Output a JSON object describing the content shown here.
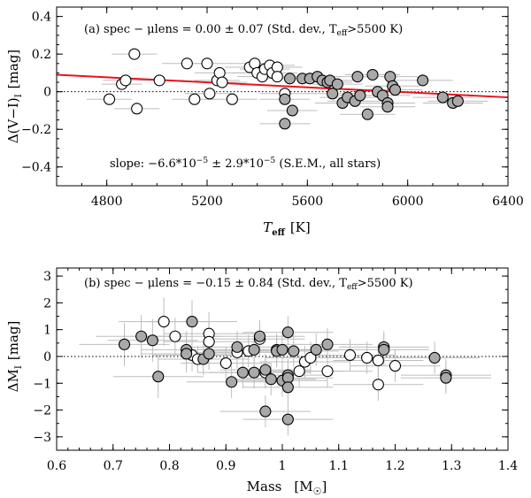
{
  "chart_data": [
    {
      "type": "scatter",
      "panel": "a",
      "xlabel_main": "T",
      "xlabel_sub": "eff",
      "xlabel_unit": "[K]",
      "ylabel_main": "Δ(V−I)",
      "ylabel_sub": "I",
      "ylabel_unit": "[mag]",
      "xlim": [
        4600,
        6400
      ],
      "ylim": [
        -0.5,
        0.45
      ],
      "xticks": [
        4800,
        5200,
        5600,
        6000,
        6400
      ],
      "yticks": [
        -0.4,
        -0.2,
        0,
        0.2,
        0.4
      ],
      "xtick_labels": [
        "4800",
        "5200",
        "5600",
        "6000",
        "6400"
      ],
      "ytick_labels": [
        "−0.4",
        "−0.2",
        "0",
        "0.2",
        "0.4"
      ],
      "annotation_top": "(a)  spec − μlens  =  0.00 ± 0.07 (Std. dev., T",
      "annotation_top_sub": "eff",
      "annotation_top_tail": ">5500 K)",
      "annotation_bottom": "slope:  −6.6*10",
      "annotation_bottom_exp1": "−5",
      "annotation_bottom_mid": " ± 2.9*10",
      "annotation_bottom_exp2": "−5",
      "annotation_bottom_tail": " (S.E.M., all stars)",
      "zero_line": 0,
      "fit_line": {
        "x": [
          4600,
          6400
        ],
        "y": [
          0.09,
          -0.03
        ],
        "color": "#e8141b"
      },
      "error_bar_color": "#bdbdbd",
      "open_points": [
        {
          "x": 4810,
          "y": -0.04,
          "xerr": 90
        },
        {
          "x": 4860,
          "y": 0.04,
          "xerr": 80
        },
        {
          "x": 4875,
          "y": 0.06,
          "xerr": 90
        },
        {
          "x": 4910,
          "y": 0.2,
          "xerr": 90
        },
        {
          "x": 4920,
          "y": -0.09,
          "xerr": 90
        },
        {
          "x": 5010,
          "y": 0.06,
          "xerr": 100
        },
        {
          "x": 5120,
          "y": 0.15,
          "xerr": 100
        },
        {
          "x": 5150,
          "y": -0.04,
          "xerr": 90
        },
        {
          "x": 5200,
          "y": 0.15,
          "xerr": 100
        },
        {
          "x": 5210,
          "y": -0.01,
          "xerr": 100
        },
        {
          "x": 5240,
          "y": 0.06,
          "xerr": 90
        },
        {
          "x": 5250,
          "y": 0.1,
          "xerr": 100
        },
        {
          "x": 5260,
          "y": 0.05,
          "xerr": 100
        },
        {
          "x": 5300,
          "y": -0.04,
          "xerr": 100
        },
        {
          "x": 5370,
          "y": 0.13,
          "xerr": 100
        },
        {
          "x": 5390,
          "y": 0.15,
          "xerr": 100
        },
        {
          "x": 5400,
          "y": 0.1,
          "xerr": 100
        },
        {
          "x": 5420,
          "y": 0.08,
          "xerr": 100
        },
        {
          "x": 5430,
          "y": 0.12,
          "xerr": 100
        },
        {
          "x": 5450,
          "y": 0.14,
          "xerr": 100
        },
        {
          "x": 5460,
          "y": 0.1,
          "xerr": 100
        },
        {
          "x": 5480,
          "y": 0.13,
          "xerr": 100
        },
        {
          "x": 5480,
          "y": 0.08,
          "xerr": 100
        },
        {
          "x": 5510,
          "y": -0.01,
          "xerr": 100
        }
      ],
      "filled_points": [
        {
          "x": 5510,
          "y": -0.04,
          "xerr": 100
        },
        {
          "x": 5510,
          "y": -0.17,
          "xerr": 100
        },
        {
          "x": 5530,
          "y": 0.07,
          "xerr": 100
        },
        {
          "x": 5540,
          "y": -0.1,
          "xerr": 100
        },
        {
          "x": 5580,
          "y": 0.07,
          "xerr": 100
        },
        {
          "x": 5610,
          "y": 0.07,
          "xerr": 100
        },
        {
          "x": 5640,
          "y": 0.08,
          "xerr": 100
        },
        {
          "x": 5660,
          "y": 0.06,
          "xerr": 100
        },
        {
          "x": 5680,
          "y": 0.05,
          "xerr": 100
        },
        {
          "x": 5690,
          "y": 0.06,
          "xerr": 100
        },
        {
          "x": 5700,
          "y": -0.01,
          "xerr": 100
        },
        {
          "x": 5720,
          "y": 0.04,
          "xerr": 100
        },
        {
          "x": 5740,
          "y": -0.06,
          "xerr": 110
        },
        {
          "x": 5760,
          "y": -0.03,
          "xerr": 110
        },
        {
          "x": 5790,
          "y": -0.05,
          "xerr": 110
        },
        {
          "x": 5800,
          "y": 0.08,
          "xerr": 110
        },
        {
          "x": 5810,
          "y": -0.02,
          "xerr": 110
        },
        {
          "x": 5840,
          "y": -0.12,
          "xerr": 110
        },
        {
          "x": 5860,
          "y": 0.09,
          "xerr": 110
        },
        {
          "x": 5880,
          "y": 0.0,
          "xerr": 110
        },
        {
          "x": 5900,
          "y": -0.02,
          "xerr": 110
        },
        {
          "x": 5920,
          "y": -0.06,
          "xerr": 110
        },
        {
          "x": 5920,
          "y": -0.08,
          "xerr": 110
        },
        {
          "x": 5930,
          "y": 0.08,
          "xerr": 110
        },
        {
          "x": 5940,
          "y": 0.03,
          "xerr": 110
        },
        {
          "x": 5950,
          "y": 0.01,
          "xerr": 110
        },
        {
          "x": 6060,
          "y": 0.06,
          "xerr": 120
        },
        {
          "x": 6140,
          "y": -0.03,
          "xerr": 120
        },
        {
          "x": 6180,
          "y": -0.06,
          "xerr": 120
        },
        {
          "x": 6200,
          "y": -0.05,
          "xerr": 120
        }
      ]
    },
    {
      "type": "scatter",
      "panel": "b",
      "xlabel_main": "Mass",
      "xlabel_unit": "[M",
      "xlabel_unit_tail": "]",
      "ylabel_main": "ΔM",
      "ylabel_sub": "I",
      "ylabel_unit": "[mag]",
      "xlim": [
        0.6,
        1.4
      ],
      "ylim": [
        -3.5,
        3.3
      ],
      "xticks": [
        0.6,
        0.7,
        0.8,
        0.9,
        1,
        1.1,
        1.2,
        1.3,
        1.4
      ],
      "yticks": [
        -3,
        -2,
        -1,
        0,
        1,
        2,
        3
      ],
      "xtick_labels": [
        "0.6",
        "0.7",
        "0.8",
        "0.9",
        "1",
        "1.1",
        "1.2",
        "1.3",
        "1.4"
      ],
      "ytick_labels": [
        "−3",
        "−2",
        "−1",
        "0",
        "1",
        "2",
        "3"
      ],
      "annotation_top": "(b)  spec − μlens  =  −0.15 ± 0.84 (Std. dev., T",
      "annotation_top_sub": "eff",
      "annotation_top_tail": ">5500 K)",
      "zero_line": 0,
      "error_bar_color": "#bdbdbd",
      "open_points": [
        {
          "x": 0.79,
          "y": 1.3,
          "xerr": 0.08,
          "yerr": 0.9
        },
        {
          "x": 0.81,
          "y": 0.75,
          "xerr": 0.08,
          "yerr": 0.7
        },
        {
          "x": 0.84,
          "y": 0.05,
          "xerr": 0.07,
          "yerr": 0.6
        },
        {
          "x": 0.85,
          "y": -0.1,
          "xerr": 0.07,
          "yerr": 0.5
        },
        {
          "x": 0.87,
          "y": 0.85,
          "xerr": 0.08,
          "yerr": 0.8
        },
        {
          "x": 0.87,
          "y": 0.55,
          "xerr": 0.08,
          "yerr": 0.7
        },
        {
          "x": 0.9,
          "y": -0.25,
          "xerr": 0.08,
          "yerr": 0.6
        },
        {
          "x": 0.92,
          "y": 0.15,
          "xerr": 0.08,
          "yerr": 0.6
        },
        {
          "x": 0.94,
          "y": 0.2,
          "xerr": 0.08,
          "yerr": 0.6
        },
        {
          "x": 0.96,
          "y": 0.65,
          "xerr": 0.08,
          "yerr": 0.6
        },
        {
          "x": 0.97,
          "y": -0.6,
          "xerr": 0.08,
          "yerr": 0.6
        },
        {
          "x": 0.99,
          "y": 0.25,
          "xerr": 0.08,
          "yerr": 0.6
        },
        {
          "x": 1.03,
          "y": -0.55,
          "xerr": 0.08,
          "yerr": 0.6
        },
        {
          "x": 1.04,
          "y": -0.2,
          "xerr": 0.08,
          "yerr": 0.6
        },
        {
          "x": 1.05,
          "y": -0.05,
          "xerr": 0.08,
          "yerr": 0.6
        },
        {
          "x": 1.08,
          "y": -0.55,
          "xerr": 0.08,
          "yerr": 0.6
        },
        {
          "x": 1.12,
          "y": 0.05,
          "xerr": 0.08,
          "yerr": 0.6
        },
        {
          "x": 1.15,
          "y": -0.05,
          "xerr": 0.08,
          "yerr": 0.6
        },
        {
          "x": 1.17,
          "y": -1.05,
          "xerr": 0.08,
          "yerr": 0.6
        },
        {
          "x": 1.17,
          "y": -0.15,
          "xerr": 0.08,
          "yerr": 0.6
        },
        {
          "x": 1.2,
          "y": -0.35,
          "xerr": 0.08,
          "yerr": 0.6
        }
      ],
      "filled_points": [
        {
          "x": 0.72,
          "y": 0.45,
          "xerr": 0.08,
          "yerr": 0.8
        },
        {
          "x": 0.75,
          "y": 0.75,
          "xerr": 0.08,
          "yerr": 0.8
        },
        {
          "x": 0.77,
          "y": 0.6,
          "xerr": 0.08,
          "yerr": 0.8
        },
        {
          "x": 0.78,
          "y": -0.75,
          "xerr": 0.08,
          "yerr": 0.8
        },
        {
          "x": 0.83,
          "y": 0.25,
          "xerr": 0.08,
          "yerr": 0.7
        },
        {
          "x": 0.83,
          "y": 0.1,
          "xerr": 0.08,
          "yerr": 0.7
        },
        {
          "x": 0.84,
          "y": 1.3,
          "xerr": 0.08,
          "yerr": 0.8
        },
        {
          "x": 0.86,
          "y": -0.1,
          "xerr": 0.08,
          "yerr": 0.6
        },
        {
          "x": 0.87,
          "y": 0.1,
          "xerr": 0.08,
          "yerr": 0.6
        },
        {
          "x": 0.91,
          "y": -0.95,
          "xerr": 0.08,
          "yerr": 0.6
        },
        {
          "x": 0.92,
          "y": 0.35,
          "xerr": 0.08,
          "yerr": 0.6
        },
        {
          "x": 0.93,
          "y": -0.6,
          "xerr": 0.08,
          "yerr": 0.6
        },
        {
          "x": 0.95,
          "y": 0.25,
          "xerr": 0.08,
          "yerr": 0.6
        },
        {
          "x": 0.95,
          "y": -0.6,
          "xerr": 0.08,
          "yerr": 0.6
        },
        {
          "x": 0.96,
          "y": 0.75,
          "xerr": 0.08,
          "yerr": 0.6
        },
        {
          "x": 0.97,
          "y": -0.5,
          "xerr": 0.08,
          "yerr": 0.6
        },
        {
          "x": 0.97,
          "y": -2.05,
          "xerr": 0.08,
          "yerr": 0.6
        },
        {
          "x": 0.98,
          "y": -0.85,
          "xerr": 0.08,
          "yerr": 0.6
        },
        {
          "x": 0.99,
          "y": 0.2,
          "xerr": 0.08,
          "yerr": 0.6
        },
        {
          "x": 1.0,
          "y": -0.9,
          "xerr": 0.08,
          "yerr": 0.6
        },
        {
          "x": 1.0,
          "y": 0.25,
          "xerr": 0.08,
          "yerr": 0.6
        },
        {
          "x": 1.01,
          "y": -0.7,
          "xerr": 0.08,
          "yerr": 0.6
        },
        {
          "x": 1.01,
          "y": -0.8,
          "xerr": 0.08,
          "yerr": 0.6
        },
        {
          "x": 1.01,
          "y": 0.9,
          "xerr": 0.08,
          "yerr": 0.6
        },
        {
          "x": 1.01,
          "y": -1.15,
          "xerr": 0.08,
          "yerr": 0.6
        },
        {
          "x": 1.01,
          "y": -2.35,
          "xerr": 0.08,
          "yerr": 0.6
        },
        {
          "x": 1.02,
          "y": 0.2,
          "xerr": 0.08,
          "yerr": 0.6
        },
        {
          "x": 1.06,
          "y": 0.25,
          "xerr": 0.08,
          "yerr": 0.6
        },
        {
          "x": 1.08,
          "y": 0.45,
          "xerr": 0.08,
          "yerr": 0.6
        },
        {
          "x": 1.18,
          "y": 0.35,
          "xerr": 0.08,
          "yerr": 0.6
        },
        {
          "x": 1.18,
          "y": 0.25,
          "xerr": 0.08,
          "yerr": 0.6
        },
        {
          "x": 1.27,
          "y": -0.05,
          "xerr": 0.08,
          "yerr": 0.6
        },
        {
          "x": 1.29,
          "y": -0.7,
          "xerr": 0.08,
          "yerr": 0.6
        },
        {
          "x": 1.29,
          "y": -0.8,
          "xerr": 0.08,
          "yerr": 0.6
        }
      ]
    }
  ]
}
